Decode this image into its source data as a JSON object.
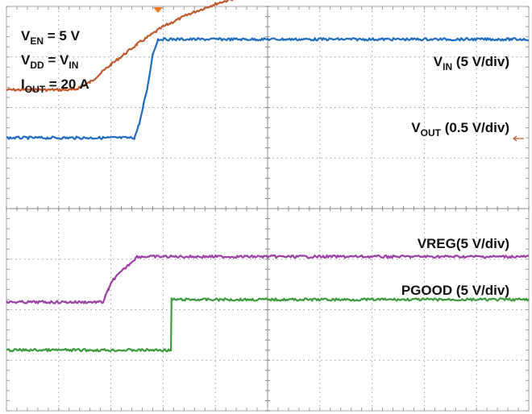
{
  "chart_data": {
    "type": "line",
    "grid": true,
    "x_divisions": 10,
    "y_divisions": 8,
    "trigger_marker_color": "#f07a1e",
    "test_conditions": [
      {
        "main": "V",
        "sub": "EN",
        "rest": " = 5 V"
      },
      {
        "main": "V",
        "sub": "DD",
        "rest": " = V",
        "sub2": "IN",
        "rest2": ""
      },
      {
        "main": "I",
        "sub": "OUT",
        "rest": " = 20 A"
      }
    ],
    "series": [
      {
        "key": "vin",
        "label": {
          "main": "V",
          "sub": "IN",
          "rest": " (5 V/div)"
        },
        "color": "#c0572b",
        "x": [
          0.0,
          1.3,
          1.6,
          2.0,
          2.5,
          3.0,
          3.5,
          4.0,
          4.5,
          5.0,
          6.0,
          7.0,
          8.0,
          9.0,
          10.0
        ],
        "y": [
          6.35,
          6.35,
          6.5,
          6.85,
          7.25,
          7.6,
          7.85,
          8.05,
          8.2,
          8.35,
          8.6,
          8.75,
          8.85,
          8.9,
          8.9
        ]
      },
      {
        "key": "vout",
        "label": {
          "main": "V",
          "sub": "OUT",
          "rest": " (0.5 V/div)"
        },
        "color": "#1f6cbf",
        "x": [
          0.0,
          2.45,
          2.55,
          2.7,
          2.8,
          2.9,
          10.0
        ],
        "y": [
          5.4,
          5.4,
          5.7,
          6.4,
          7.05,
          7.35,
          7.35
        ]
      },
      {
        "key": "vreg",
        "label": {
          "main": "VREG",
          "sub": "",
          "rest": "(5 V/div)"
        },
        "color": "#9b3fa6",
        "x": [
          0.0,
          1.85,
          1.95,
          2.05,
          2.3,
          2.5,
          10.0
        ],
        "y": [
          2.15,
          2.15,
          2.4,
          2.6,
          2.85,
          3.05,
          3.05
        ]
      },
      {
        "key": "pgood",
        "label": {
          "main": "PGOOD",
          "sub": "",
          "rest": " (5 V/div)"
        },
        "color": "#3a9a3c",
        "x": [
          0.0,
          3.15,
          3.16,
          10.0
        ],
        "y": [
          1.2,
          1.2,
          2.2,
          2.2
        ]
      }
    ]
  }
}
